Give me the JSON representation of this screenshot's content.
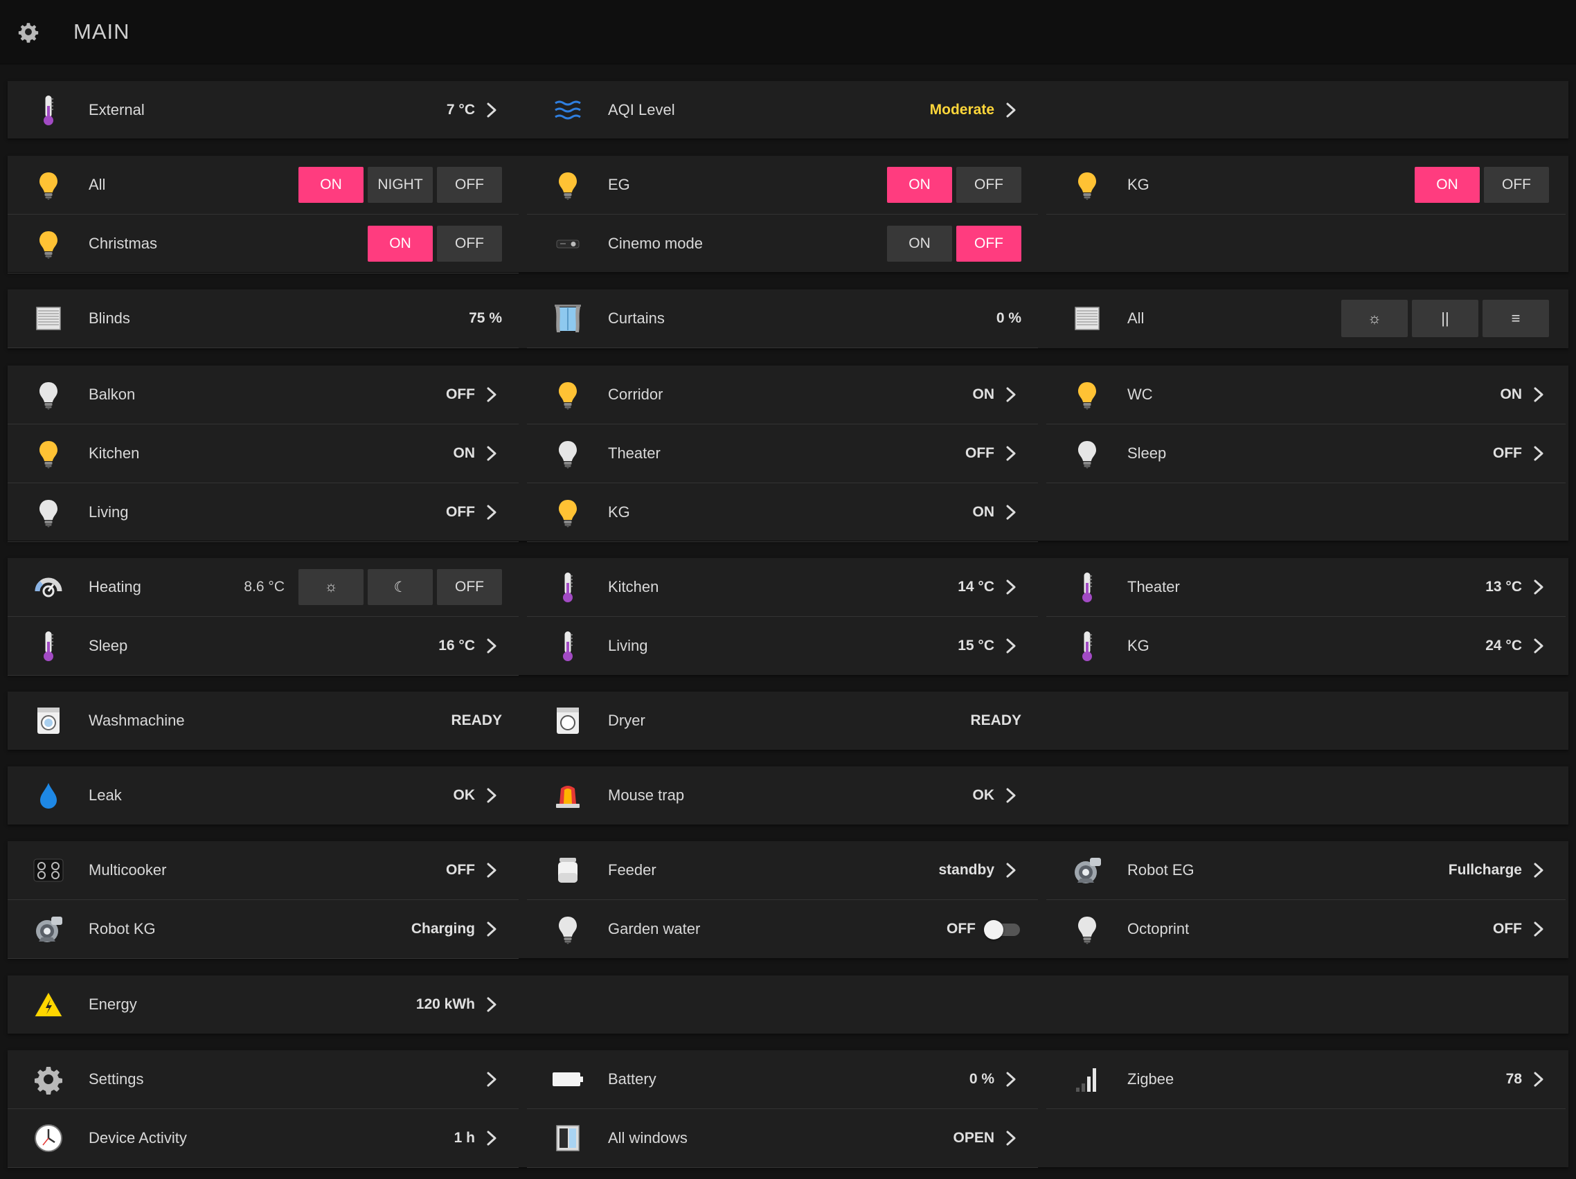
{
  "header": {
    "title": "MAIN",
    "icon": "gear-icon"
  },
  "weather": {
    "external": {
      "label": "External",
      "value": "7 °C"
    },
    "aqi": {
      "label": "AQI Level",
      "value": "Moderate",
      "color": "#ffd63a"
    }
  },
  "scenes": {
    "all": {
      "label": "All",
      "buttons": [
        "ON",
        "NIGHT",
        "OFF"
      ],
      "active": "ON"
    },
    "eg": {
      "label": "EG",
      "buttons": [
        "ON",
        "OFF"
      ],
      "active": "ON"
    },
    "kg": {
      "label": "KG",
      "buttons": [
        "ON",
        "OFF"
      ],
      "active": "ON"
    },
    "christmas": {
      "label": "Christmas",
      "buttons": [
        "ON",
        "OFF"
      ],
      "active": "ON"
    },
    "cinema": {
      "label": "Cinemo mode",
      "buttons": [
        "ON",
        "OFF"
      ],
      "active": "OFF"
    }
  },
  "covers": {
    "blinds": {
      "label": "Blinds",
      "value": "75 %"
    },
    "curtains": {
      "label": "Curtains",
      "value": "0 %"
    },
    "all": {
      "label": "All",
      "buttons": [
        "☼",
        "||",
        "≡"
      ]
    }
  },
  "lights": {
    "balkon": {
      "label": "Balkon",
      "value": "OFF"
    },
    "corridor": {
      "label": "Corridor",
      "value": "ON"
    },
    "wc": {
      "label": "WC",
      "value": "ON"
    },
    "kitchen": {
      "label": "Kitchen",
      "value": "ON"
    },
    "theater": {
      "label": "Theater",
      "value": "OFF"
    },
    "sleep": {
      "label": "Sleep",
      "value": "OFF"
    },
    "living": {
      "label": "Living",
      "value": "OFF"
    },
    "kg": {
      "label": "KG",
      "value": "ON"
    }
  },
  "climate": {
    "heating": {
      "label": "Heating",
      "value": "8.6 °C",
      "buttons": [
        "☼",
        "☾",
        "OFF"
      ]
    },
    "kitchen": {
      "label": "Kitchen",
      "value": "14 °C"
    },
    "theater": {
      "label": "Theater",
      "value": "13 °C"
    },
    "sleep": {
      "label": "Sleep",
      "value": "16 °C"
    },
    "living": {
      "label": "Living",
      "value": "15 °C"
    },
    "kg": {
      "label": "KG",
      "value": "24 °C"
    }
  },
  "appliances": {
    "washmachine": {
      "label": "Washmachine",
      "value": "READY"
    },
    "dryer": {
      "label": "Dryer",
      "value": "READY"
    }
  },
  "alarms": {
    "leak": {
      "label": "Leak",
      "value": "OK"
    },
    "mousetrap": {
      "label": "Mouse trap",
      "value": "OK"
    }
  },
  "devices": {
    "multicooker": {
      "label": "Multicooker",
      "value": "OFF"
    },
    "feeder": {
      "label": "Feeder",
      "value": "standby"
    },
    "robot_eg": {
      "label": "Robot EG",
      "value": "Fullcharge"
    },
    "robot_kg": {
      "label": "Robot KG",
      "value": "Charging"
    },
    "garden_water": {
      "label": "Garden water",
      "value": "OFF",
      "toggle_on": false
    },
    "octoprint": {
      "label": "Octoprint",
      "value": "OFF"
    }
  },
  "energy": {
    "label": "Energy",
    "value": "120 kWh"
  },
  "system": {
    "settings": {
      "label": "Settings"
    },
    "battery": {
      "label": "Battery",
      "value": "0 %"
    },
    "zigbee": {
      "label": "Zigbee",
      "value": "78"
    },
    "device_activity": {
      "label": "Device Activity",
      "value": "1 h"
    },
    "windows": {
      "label": "All windows",
      "value": "OPEN"
    }
  },
  "colors": {
    "accent": "#ff3c7f",
    "bulb_on": "#ffc234",
    "bulb_off": "#e4e4e4",
    "thermometer": "#a24bc4",
    "water": "#1e88e5"
  }
}
